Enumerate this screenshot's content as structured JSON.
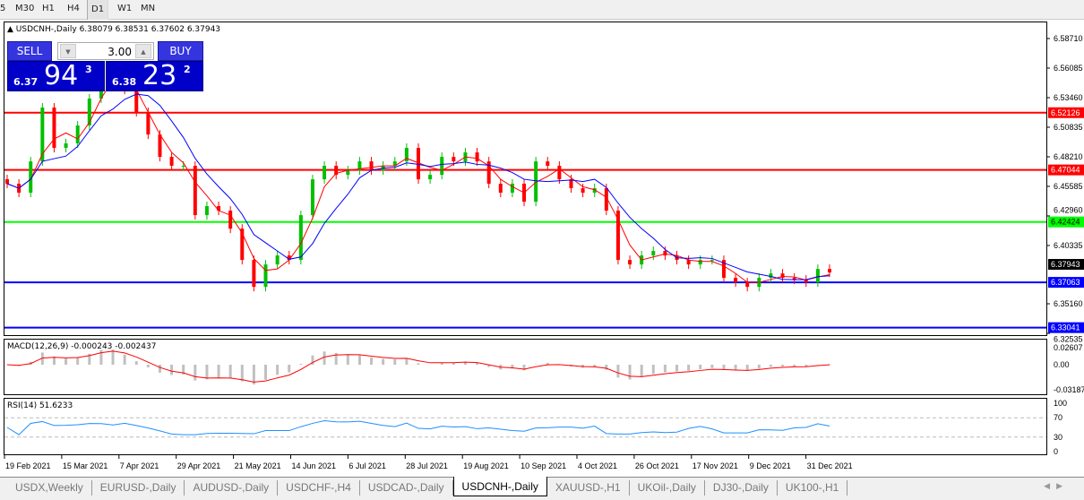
{
  "timeframes": [
    "5",
    "M30",
    "H1",
    "H4",
    "D1",
    "W1",
    "MN"
  ],
  "active_timeframe": "D1",
  "chart": {
    "title": "USDCNH-,Daily",
    "ohlc": "6.38079 6.38531 6.37602 6.37943",
    "trade": {
      "sell_label": "SELL",
      "buy_label": "BUY",
      "lot": "3.00",
      "sell_small": "6.37",
      "sell_large": "94",
      "sell_pip": "3",
      "buy_small": "6.38",
      "buy_large": "23",
      "buy_pip": "2"
    },
    "price_ticks": [
      "6.58710",
      "6.56085",
      "6.53460",
      "6.50835",
      "6.48210",
      "6.45585",
      "6.42960",
      "6.40335",
      "6.35160",
      "6.32535"
    ],
    "hlines": [
      {
        "price": 6.52126,
        "label": "6.52126",
        "color": "#ff0000"
      },
      {
        "price": 6.47044,
        "label": "6.47044",
        "color": "#ff0000"
      },
      {
        "price": 6.42424,
        "label": "6.42424",
        "color": "#00ff00"
      },
      {
        "price": 6.37063,
        "label": "6.37063",
        "color": "#0000ff"
      },
      {
        "price": 6.33041,
        "label": "6.33041",
        "color": "#0000ff"
      }
    ],
    "current_price": {
      "price": 6.37943,
      "label": "6.37943"
    },
    "price_range": [
      6.32535,
      6.5871
    ],
    "closes": [
      6.4582,
      6.4502,
      6.478,
      6.5258,
      6.49,
      6.494,
      6.5099,
      6.5338,
      6.5576,
      6.5616,
      6.5417,
      6.5218,
      6.5019,
      6.482,
      6.4741,
      6.4741,
      6.4303,
      6.4383,
      6.4343,
      6.4183,
      6.3905,
      6.3666,
      6.3865,
      6.3945,
      6.3905,
      6.4303,
      6.4621,
      6.4741,
      6.4661,
      6.4701,
      6.478,
      6.4701,
      6.4741,
      6.478,
      6.49,
      6.4621,
      6.4661,
      6.482,
      6.478,
      6.486,
      6.478,
      6.4582,
      6.4502,
      6.4582,
      6.4422,
      6.478,
      6.4741,
      6.4621,
      6.4542,
      6.4502,
      6.4542,
      6.4343,
      6.3905,
      6.3865,
      6.3945,
      6.3985,
      6.3945,
      6.3905,
      6.3865,
      6.3905,
      6.3905,
      6.3746,
      6.3706,
      6.3666,
      6.3746,
      6.3785,
      6.3746,
      6.373,
      6.3706,
      6.3825,
      6.37943
    ],
    "x_labels": [
      "19 Feb 2021",
      "15 Mar 2021",
      "7 Apr 2021",
      "29 Apr 2021",
      "21 May 2021",
      "14 Jun 2021",
      "6 Jul 2021",
      "28 Jul 2021",
      "19 Aug 2021",
      "10 Sep 2021",
      "4 Oct 2021",
      "26 Oct 2021",
      "17 Nov 2021",
      "9 Dec 2021",
      "31 Dec 2021"
    ],
    "colors": {
      "bull": "#00c000",
      "bear": "#ff0000",
      "ma_fast": "#ff0000",
      "ma_slow": "#0000ff"
    }
  },
  "macd": {
    "label": "MACD(12,26,9) -0.000243 -0.002437",
    "ticks": [
      "0.02607",
      "0.00",
      "-0.031872"
    ]
  },
  "rsi": {
    "label": "RSI(14) 51.6233",
    "ticks": [
      "100",
      "70",
      "30",
      "0"
    ]
  },
  "tabs": [
    "USDX,Weekly",
    "EURUSD-,Daily",
    "AUDUSD-,Daily",
    "USDCHF-,H4",
    "USDCAD-,Daily",
    "USDCNH-,Daily",
    "XAUUSD-,H1",
    "UKOil-,Daily",
    "DJ30-,Daily",
    "UK100-,H1"
  ],
  "active_tab": "USDCNH-,Daily"
}
